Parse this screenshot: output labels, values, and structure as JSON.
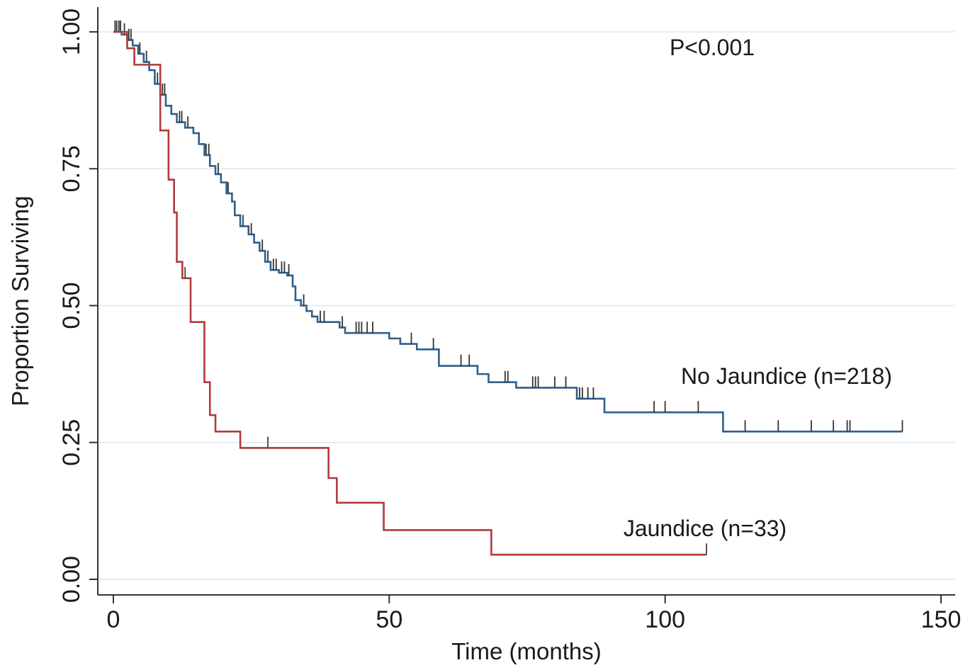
{
  "chart_data": {
    "type": "line",
    "subtype": "kaplan-meier step curve",
    "xlabel": "Time (months)",
    "ylabel": "Proportion Surviving",
    "xlim": [
      0,
      150
    ],
    "ylim": [
      0,
      1
    ],
    "xticks": [
      0,
      50,
      100,
      150
    ],
    "ytick_labels": [
      "0.00",
      "0.25",
      "0.50",
      "0.75",
      "1.00"
    ],
    "yticks": [
      0,
      0.25,
      0.5,
      0.75,
      1
    ],
    "grid": "horizontal",
    "annotation": "P<0.001",
    "series": [
      {
        "name": "No Jaundice (n=218)",
        "color": "#2f5f8a",
        "steps": [
          [
            0,
            1.0
          ],
          [
            1.5,
            0.995
          ],
          [
            2.5,
            0.985
          ],
          [
            3.5,
            0.975
          ],
          [
            4.5,
            0.96
          ],
          [
            5.5,
            0.945
          ],
          [
            6.5,
            0.93
          ],
          [
            7.5,
            0.905
          ],
          [
            8.5,
            0.885
          ],
          [
            9.5,
            0.865
          ],
          [
            10.5,
            0.85
          ],
          [
            11.5,
            0.835
          ],
          [
            13,
            0.825
          ],
          [
            14.5,
            0.815
          ],
          [
            15.5,
            0.795
          ],
          [
            16.5,
            0.775
          ],
          [
            17.5,
            0.755
          ],
          [
            18.5,
            0.74
          ],
          [
            19.5,
            0.725
          ],
          [
            20.5,
            0.705
          ],
          [
            21.5,
            0.69
          ],
          [
            22,
            0.665
          ],
          [
            23,
            0.645
          ],
          [
            24.5,
            0.63
          ],
          [
            25.5,
            0.615
          ],
          [
            26.5,
            0.6
          ],
          [
            27.5,
            0.58
          ],
          [
            28.5,
            0.565
          ],
          [
            30,
            0.56
          ],
          [
            31.5,
            0.555
          ],
          [
            32.5,
            0.535
          ],
          [
            33,
            0.51
          ],
          [
            34,
            0.5
          ],
          [
            35,
            0.49
          ],
          [
            36,
            0.48
          ],
          [
            37,
            0.47
          ],
          [
            41,
            0.46
          ],
          [
            42,
            0.45
          ],
          [
            50,
            0.44
          ],
          [
            52,
            0.43
          ],
          [
            55,
            0.42
          ],
          [
            59,
            0.39
          ],
          [
            66,
            0.375
          ],
          [
            68,
            0.36
          ],
          [
            73,
            0.35
          ],
          [
            84,
            0.33
          ],
          [
            89,
            0.305
          ],
          [
            110.5,
            0.27
          ],
          [
            143,
            0.27
          ]
        ],
        "censored": [
          [
            0.3,
            1.0
          ],
          [
            0.6,
            1.0
          ],
          [
            1.0,
            1.0
          ],
          [
            1.3,
            1.0
          ],
          [
            2.0,
            0.995
          ],
          [
            2.8,
            0.985
          ],
          [
            3.2,
            0.985
          ],
          [
            4.8,
            0.96
          ],
          [
            6.0,
            0.945
          ],
          [
            8.0,
            0.905
          ],
          [
            8.9,
            0.885
          ],
          [
            9.3,
            0.885
          ],
          [
            12.0,
            0.835
          ],
          [
            12.4,
            0.835
          ],
          [
            13.5,
            0.825
          ],
          [
            16.8,
            0.775
          ],
          [
            17.3,
            0.775
          ],
          [
            19.0,
            0.74
          ],
          [
            20.8,
            0.705
          ],
          [
            23.5,
            0.645
          ],
          [
            25.0,
            0.63
          ],
          [
            27.0,
            0.6
          ],
          [
            28.0,
            0.58
          ],
          [
            29.0,
            0.565
          ],
          [
            29.5,
            0.565
          ],
          [
            30.5,
            0.56
          ],
          [
            31.0,
            0.56
          ],
          [
            31.8,
            0.555
          ],
          [
            34.5,
            0.5
          ],
          [
            37.5,
            0.47
          ],
          [
            38.2,
            0.47
          ],
          [
            41.5,
            0.46
          ],
          [
            44,
            0.45
          ],
          [
            44.5,
            0.45
          ],
          [
            45,
            0.45
          ],
          [
            46,
            0.45
          ],
          [
            47,
            0.45
          ],
          [
            54,
            0.43
          ],
          [
            58,
            0.42
          ],
          [
            63,
            0.39
          ],
          [
            64.5,
            0.39
          ],
          [
            71,
            0.36
          ],
          [
            71.5,
            0.36
          ],
          [
            76,
            0.35
          ],
          [
            76.5,
            0.35
          ],
          [
            77,
            0.35
          ],
          [
            80,
            0.35
          ],
          [
            82,
            0.35
          ],
          [
            84.5,
            0.33
          ],
          [
            85,
            0.33
          ],
          [
            86,
            0.33
          ],
          [
            87,
            0.33
          ],
          [
            98,
            0.305
          ],
          [
            100,
            0.305
          ],
          [
            106,
            0.305
          ],
          [
            114.5,
            0.27
          ],
          [
            120.5,
            0.27
          ],
          [
            126.5,
            0.27
          ],
          [
            130.5,
            0.27
          ],
          [
            133,
            0.27
          ],
          [
            133.5,
            0.27
          ],
          [
            143,
            0.27
          ]
        ]
      },
      {
        "name": "Jaundice (n=33)",
        "color": "#b03a3a",
        "steps": [
          [
            0,
            1.0
          ],
          [
            2.5,
            0.97
          ],
          [
            3.8,
            0.94
          ],
          [
            8.5,
            0.82
          ],
          [
            10,
            0.73
          ],
          [
            11,
            0.67
          ],
          [
            11.5,
            0.58
          ],
          [
            12.5,
            0.55
          ],
          [
            14,
            0.47
          ],
          [
            16.5,
            0.36
          ],
          [
            17.5,
            0.3
          ],
          [
            18.5,
            0.27
          ],
          [
            23,
            0.24
          ],
          [
            39,
            0.185
          ],
          [
            40.5,
            0.14
          ],
          [
            49,
            0.09
          ],
          [
            68.5,
            0.045
          ],
          [
            107.5,
            0.045
          ]
        ],
        "censored": [
          [
            13,
            0.55
          ],
          [
            28,
            0.24
          ],
          [
            107.5,
            0.045
          ]
        ]
      }
    ]
  }
}
